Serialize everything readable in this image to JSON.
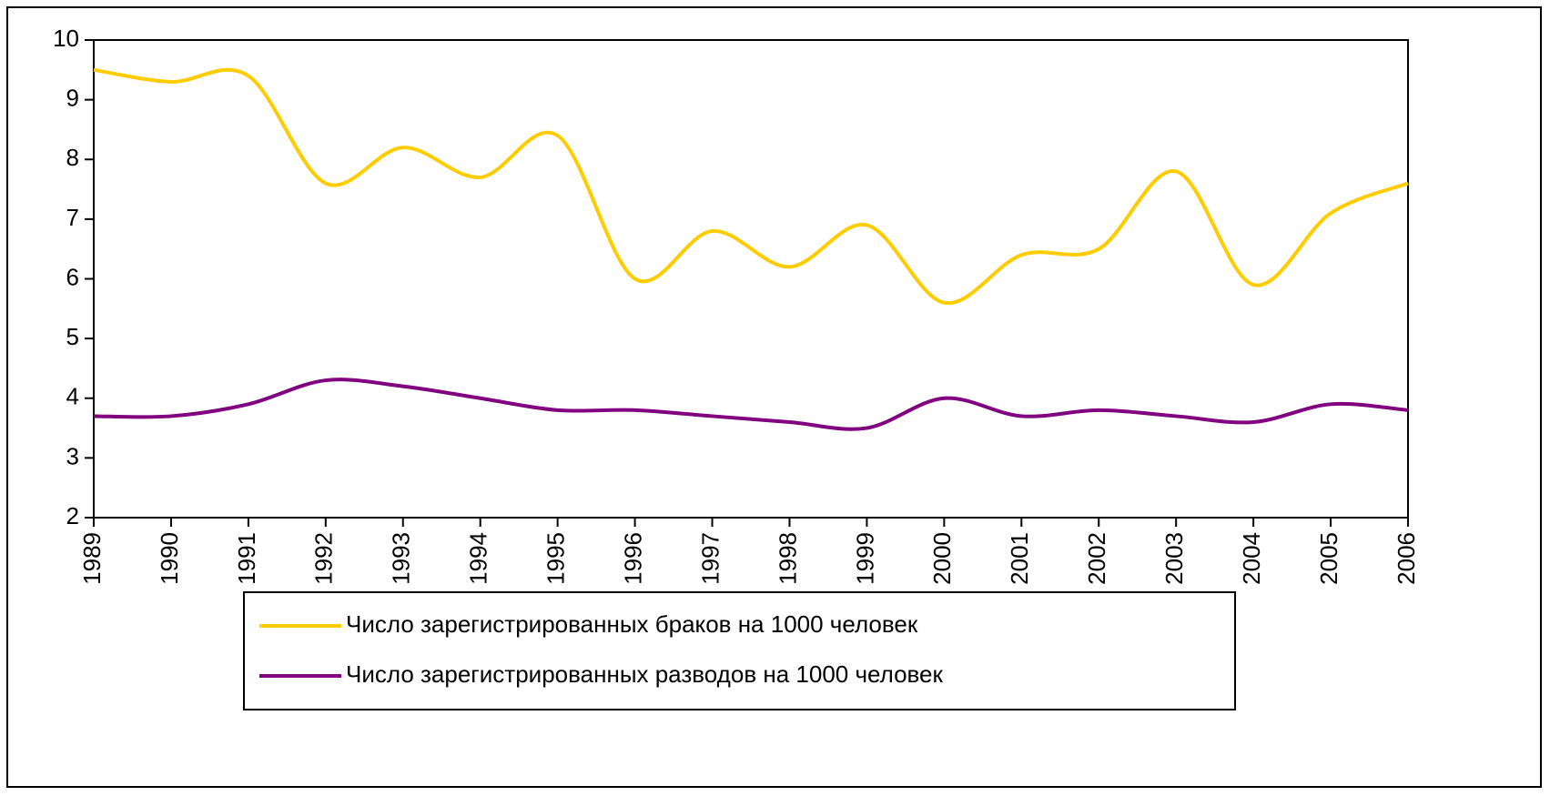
{
  "chart_data": {
    "type": "line",
    "categories": [
      "1989",
      "1990",
      "1991",
      "1992",
      "1993",
      "1994",
      "1995",
      "1996",
      "1997",
      "1998",
      "1999",
      "2000",
      "2001",
      "2002",
      "2003",
      "2004",
      "2005",
      "2006"
    ],
    "series": [
      {
        "name": "Число зарегистрированных браков на 1000 человек",
        "color": "#ffcc00",
        "values": [
          9.5,
          9.3,
          9.4,
          7.6,
          8.2,
          7.7,
          8.4,
          6.0,
          6.8,
          6.2,
          6.9,
          5.6,
          6.4,
          6.5,
          7.8,
          5.9,
          7.1,
          7.6
        ]
      },
      {
        "name": "Число зарегистрированных разводов на 1000 человек",
        "color": "#800080",
        "values": [
          3.7,
          3.7,
          3.9,
          4.3,
          4.2,
          4.0,
          3.8,
          3.8,
          3.7,
          3.6,
          3.5,
          4.0,
          3.7,
          3.8,
          3.7,
          3.6,
          3.9,
          3.8
        ]
      }
    ],
    "ylim": [
      2,
      10
    ],
    "yticks": [
      2,
      3,
      4,
      5,
      6,
      7,
      8,
      9,
      10
    ],
    "grid": false,
    "smooth": true,
    "legend": "bottom"
  }
}
